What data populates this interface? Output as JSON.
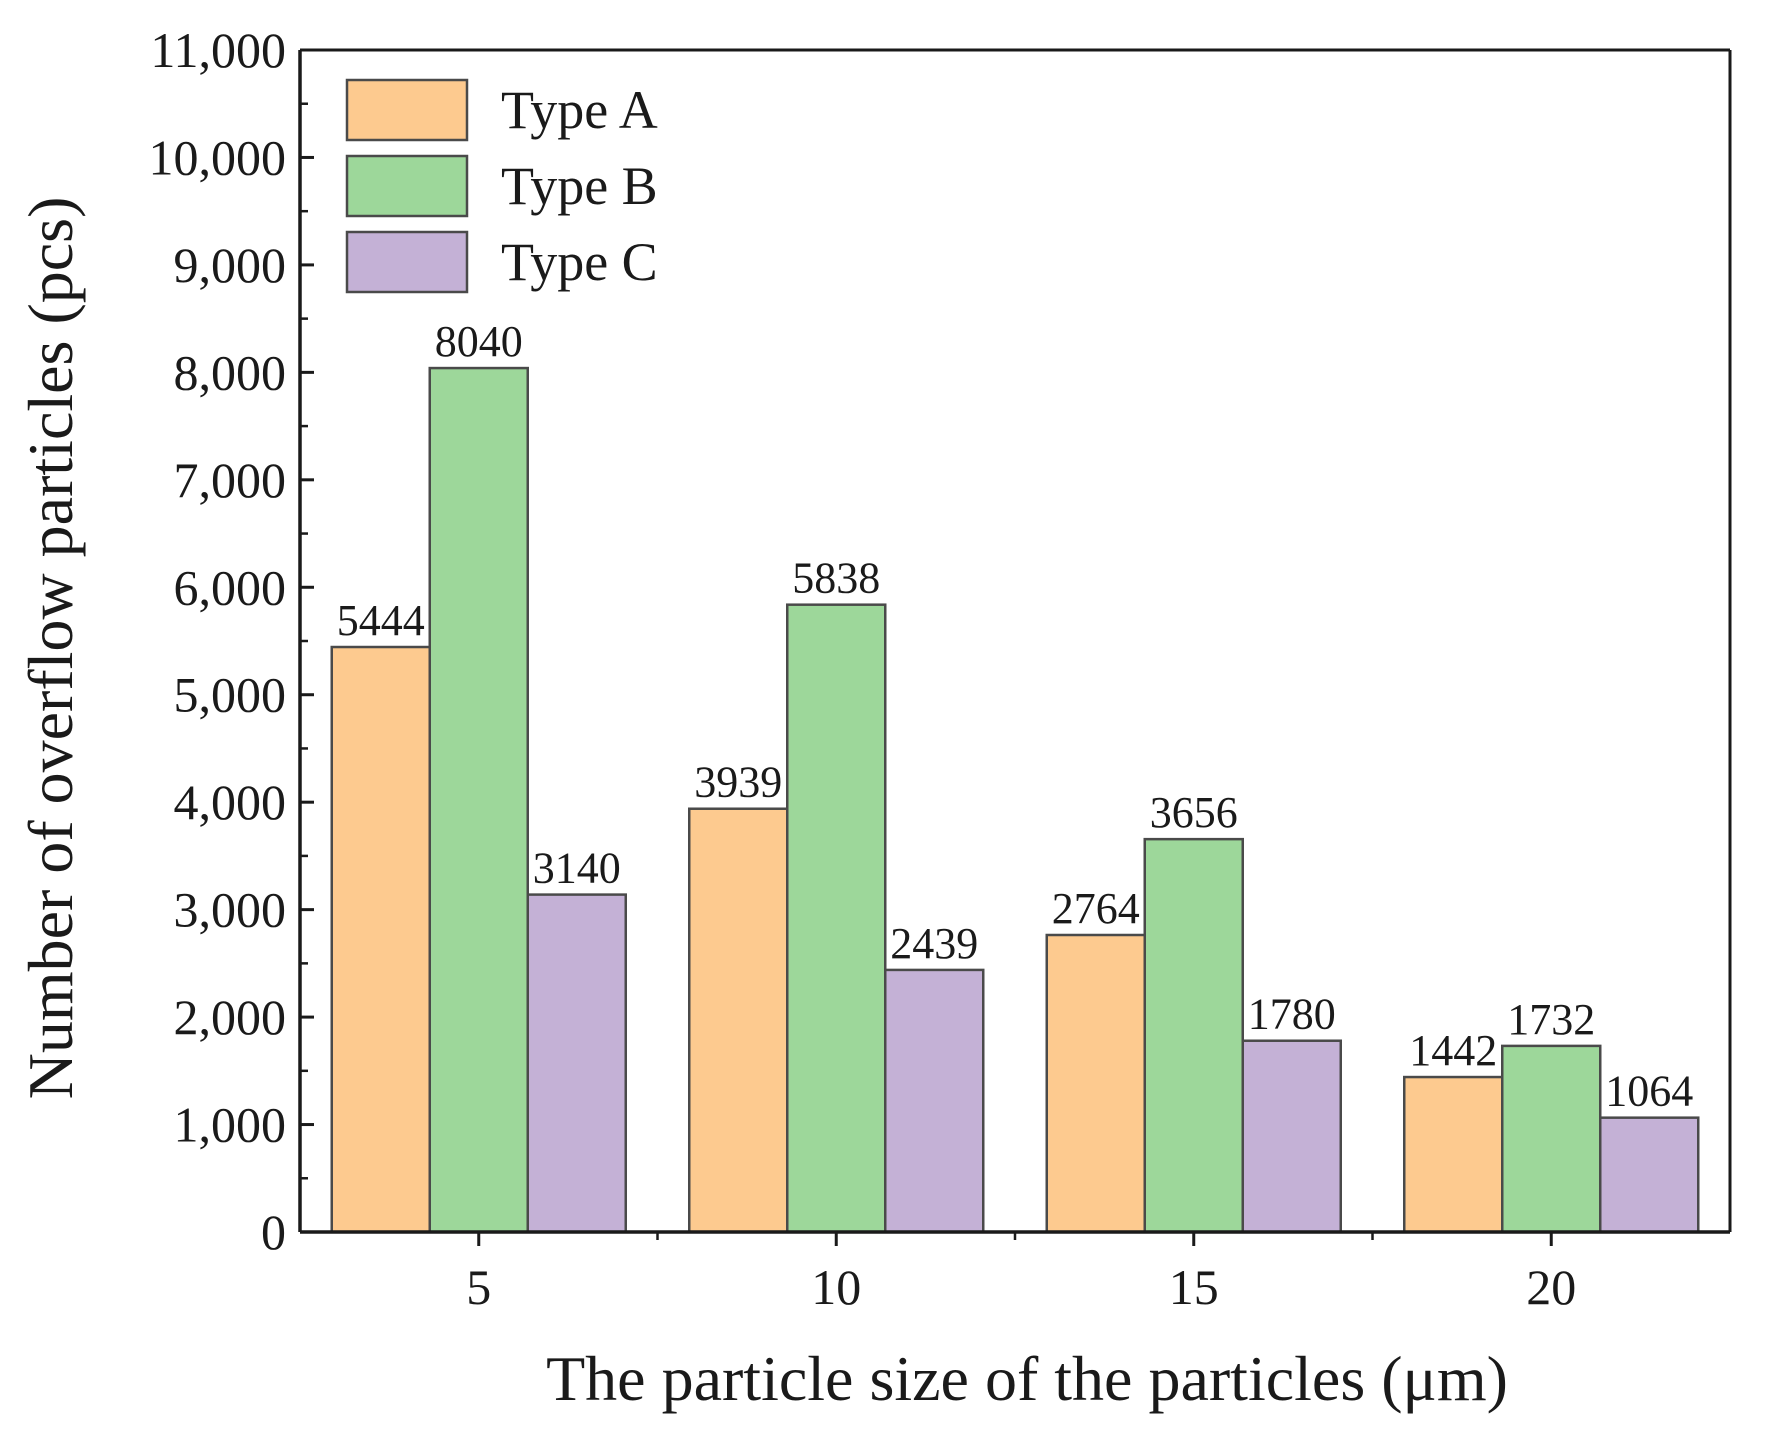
{
  "chart_data": {
    "type": "bar",
    "title": "",
    "xlabel": "The particle size of the particles  (μm)",
    "ylabel": "Number of overflow particles  (pcs)",
    "ylim": [
      0,
      11000
    ],
    "yticks": [
      0,
      1000,
      2000,
      3000,
      4000,
      5000,
      6000,
      7000,
      8000,
      9000,
      10000,
      11000
    ],
    "ytick_labels": [
      "0",
      "1,000",
      "2,000",
      "3,000",
      "4,000",
      "5,000",
      "6,000",
      "7,000",
      "8,000",
      "9,000",
      "10,000",
      "11,000"
    ],
    "categories": [
      "5",
      "10",
      "15",
      "20"
    ],
    "legend_position": "top-left",
    "grid": false,
    "series": [
      {
        "name": "Type A",
        "color": "#fdca8f",
        "values": [
          5444,
          3939,
          2764,
          1442
        ]
      },
      {
        "name": "Type B",
        "color": "#9dd79a",
        "values": [
          8040,
          5838,
          3656,
          1732
        ]
      },
      {
        "name": "Type C",
        "color": "#c4b1d6",
        "values": [
          3140,
          2439,
          1780,
          1064
        ]
      }
    ]
  }
}
